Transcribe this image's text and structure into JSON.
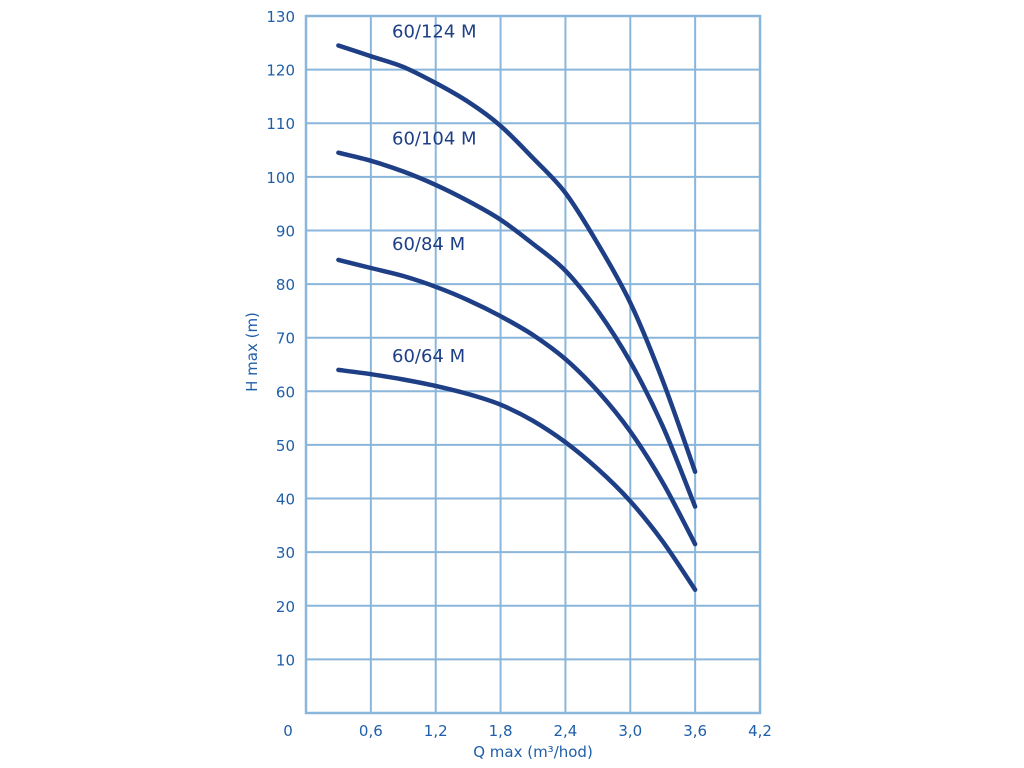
{
  "chart_data": {
    "type": "line",
    "title": "",
    "xlabel": "Q max (m³/hod)",
    "ylabel": "H max (m)",
    "xlim": [
      0,
      4.2
    ],
    "ylim": [
      0,
      130
    ],
    "grid": true,
    "x_ticks": [
      "0",
      "0,6",
      "1,2",
      "1,8",
      "2,4",
      "3,0",
      "3,6",
      "4,2"
    ],
    "y_ticks": [
      "10",
      "20",
      "30",
      "40",
      "50",
      "60",
      "70",
      "80",
      "90",
      "100",
      "110",
      "120",
      "130"
    ],
    "colors": {
      "line": "#1e3f86",
      "grid": "#8ab6dc",
      "text": "#1f5ea8"
    },
    "series": [
      {
        "name": "60/124 M",
        "x": [
          0.3,
          0.6,
          0.9,
          1.2,
          1.5,
          1.8,
          2.1,
          2.4,
          2.7,
          3.0,
          3.3,
          3.6
        ],
        "y": [
          124.5,
          122.5,
          120.5,
          117.5,
          114.0,
          109.5,
          103.5,
          97.0,
          87.5,
          76.5,
          62.0,
          45.0
        ]
      },
      {
        "name": "60/104 M",
        "x": [
          0.3,
          0.6,
          0.9,
          1.2,
          1.5,
          1.8,
          2.1,
          2.4,
          2.7,
          3.0,
          3.3,
          3.6
        ],
        "y": [
          104.5,
          103.0,
          101.0,
          98.5,
          95.5,
          92.0,
          87.5,
          82.5,
          75.0,
          65.5,
          53.5,
          38.5
        ]
      },
      {
        "name": "60/84 M",
        "x": [
          0.3,
          0.6,
          0.9,
          1.2,
          1.5,
          1.8,
          2.1,
          2.4,
          2.7,
          3.0,
          3.3,
          3.6
        ],
        "y": [
          84.5,
          83.0,
          81.5,
          79.5,
          77.0,
          74.0,
          70.5,
          66.0,
          60.0,
          52.5,
          43.0,
          31.5
        ]
      },
      {
        "name": "60/64 M",
        "x": [
          0.3,
          0.6,
          0.9,
          1.2,
          1.5,
          1.8,
          2.1,
          2.4,
          2.7,
          3.0,
          3.3,
          3.6
        ],
        "y": [
          64.0,
          63.2,
          62.2,
          61.0,
          59.5,
          57.5,
          54.5,
          50.5,
          45.5,
          39.5,
          32.0,
          23.0
        ]
      }
    ]
  }
}
